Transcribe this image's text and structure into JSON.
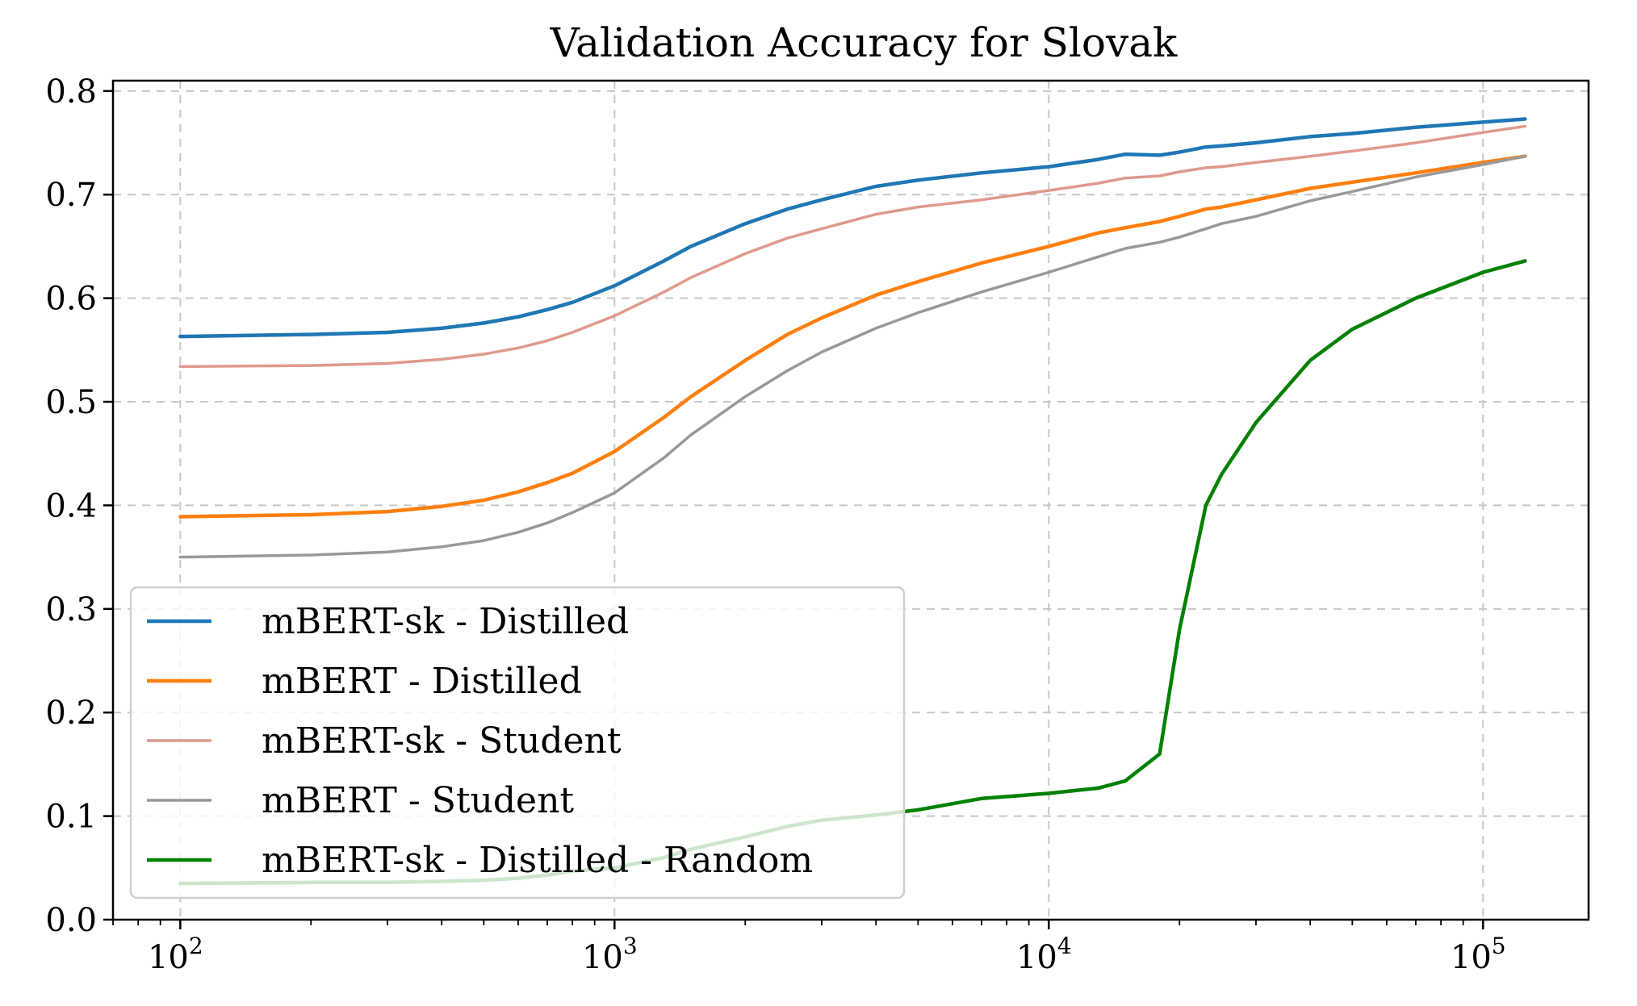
{
  "chart_data": {
    "type": "line",
    "title": "Validation Accuracy for Slovak",
    "xlabel": "",
    "ylabel": "",
    "xscale": "log",
    "xlim": [
      70,
      175000
    ],
    "ylim": [
      0,
      0.81
    ],
    "grid": true,
    "legend_position": "lower-left",
    "x_ticks": [
      {
        "value": 100,
        "base": "10",
        "exp": "2"
      },
      {
        "value": 1000,
        "base": "10",
        "exp": "3"
      },
      {
        "value": 10000,
        "base": "10",
        "exp": "4"
      },
      {
        "value": 100000,
        "base": "10",
        "exp": "5"
      }
    ],
    "y_ticks": [
      {
        "value": 0.0,
        "label": "0.0"
      },
      {
        "value": 0.1,
        "label": "0.1"
      },
      {
        "value": 0.2,
        "label": "0.2"
      },
      {
        "value": 0.3,
        "label": "0.3"
      },
      {
        "value": 0.4,
        "label": "0.4"
      },
      {
        "value": 0.5,
        "label": "0.5"
      },
      {
        "value": 0.6,
        "label": "0.6"
      },
      {
        "value": 0.7,
        "label": "0.7"
      },
      {
        "value": 0.8,
        "label": "0.8"
      }
    ],
    "x": [
      100,
      200,
      300,
      400,
      500,
      600,
      700,
      800,
      1000,
      1300,
      1500,
      2000,
      2500,
      3000,
      4000,
      5000,
      7000,
      10000,
      13000,
      15000,
      18000,
      20000,
      23000,
      25000,
      30000,
      40000,
      50000,
      70000,
      100000,
      125000
    ],
    "series": [
      {
        "name": "mBERT-sk - Distilled",
        "color": "#1f77b4",
        "stroke_width": 4.5,
        "opacity": 1,
        "values": [
          0.563,
          0.565,
          0.567,
          0.571,
          0.576,
          0.582,
          0.589,
          0.596,
          0.612,
          0.636,
          0.65,
          0.672,
          0.686,
          0.695,
          0.708,
          0.714,
          0.721,
          0.727,
          0.734,
          0.739,
          0.738,
          0.741,
          0.746,
          0.747,
          0.75,
          0.756,
          0.759,
          0.765,
          0.77,
          0.773
        ]
      },
      {
        "name": "mBERT - Distilled",
        "color": "#ff7f0e",
        "stroke_width": 4.5,
        "opacity": 1,
        "values": [
          0.389,
          0.391,
          0.394,
          0.399,
          0.405,
          0.413,
          0.422,
          0.431,
          0.452,
          0.485,
          0.505,
          0.54,
          0.565,
          0.581,
          0.603,
          0.616,
          0.634,
          0.65,
          0.663,
          0.668,
          0.674,
          0.679,
          0.686,
          0.688,
          0.695,
          0.706,
          0.712,
          0.721,
          0.731,
          0.737
        ]
      },
      {
        "name": "mBERT-sk - Student",
        "color": "#df9a8a",
        "stroke_width": 3.5,
        "opacity": 1,
        "values": [
          0.534,
          0.535,
          0.537,
          0.541,
          0.546,
          0.552,
          0.559,
          0.567,
          0.583,
          0.606,
          0.62,
          0.643,
          0.658,
          0.667,
          0.681,
          0.688,
          0.695,
          0.704,
          0.711,
          0.716,
          0.718,
          0.722,
          0.726,
          0.727,
          0.731,
          0.737,
          0.742,
          0.75,
          0.76,
          0.766
        ]
      },
      {
        "name": "mBERT - Student",
        "color": "#999999",
        "stroke_width": 3.5,
        "opacity": 1,
        "values": [
          0.35,
          0.352,
          0.355,
          0.36,
          0.366,
          0.374,
          0.383,
          0.393,
          0.412,
          0.446,
          0.468,
          0.505,
          0.53,
          0.548,
          0.571,
          0.586,
          0.606,
          0.625,
          0.64,
          0.648,
          0.654,
          0.659,
          0.667,
          0.672,
          0.679,
          0.694,
          0.703,
          0.717,
          0.729,
          0.737
        ]
      },
      {
        "name": "mBERT-sk - Distilled - Random",
        "color": "#008000",
        "stroke_width": 4.5,
        "opacity": 1,
        "values": [
          0.035,
          0.036,
          0.036,
          0.037,
          0.038,
          0.04,
          0.043,
          0.047,
          0.05,
          0.06,
          0.068,
          0.08,
          0.09,
          0.096,
          0.101,
          0.106,
          0.117,
          0.122,
          0.127,
          0.134,
          0.16,
          0.28,
          0.4,
          0.43,
          0.48,
          0.54,
          0.57,
          0.6,
          0.625,
          0.636
        ]
      }
    ]
  }
}
